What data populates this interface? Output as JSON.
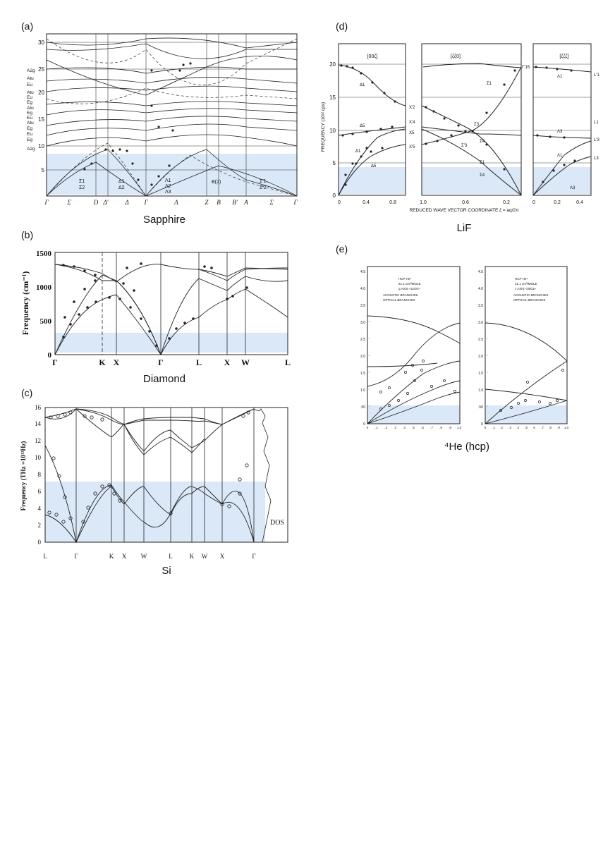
{
  "page": {
    "background": "#ffffff",
    "band_color": "#dbe8f8"
  },
  "chart_data": [
    {
      "panel": "(a)",
      "type": "line",
      "title": "Sapphire",
      "y_ticks": [
        "5",
        "10",
        "15",
        "20",
        "25",
        "30"
      ],
      "ylim": [
        0,
        31
      ],
      "x_labels": [
        "Γ",
        "Σ",
        "D",
        "Δ'",
        "Δ",
        "Γ",
        "Λ",
        "Z",
        "B",
        "B'",
        "A",
        "Σ",
        "Γ"
      ],
      "mode_labels": [
        "A2g",
        "Atu",
        "Eu",
        "Atu",
        "Eu",
        "Eg",
        "Atu",
        "Eg",
        "Eu",
        "Atu",
        "Eg",
        "Eu",
        "Eg",
        "A2g"
      ],
      "legend": [
        "Σ1",
        "Σ2",
        "Δ1",
        "Δ2",
        "Λ1",
        "Λ2",
        "Λ3",
        "B(2)",
        "Σ'1",
        "Σ'2"
      ],
      "highlight_band": [
        0,
        8
      ]
    },
    {
      "panel": "(b)",
      "type": "line",
      "title": "Diamond",
      "ylabel": "Frequency (cm⁻¹)",
      "y_ticks": [
        "0",
        "500",
        "1000",
        "1500"
      ],
      "ylim": [
        0,
        1500
      ],
      "x_labels": [
        "Γ",
        "K",
        "X",
        "Γ",
        "L",
        "X",
        "W",
        "L"
      ],
      "highlight_band": [
        0,
        330
      ],
      "series": [
        {
          "name": "",
          "x": [
            "Γ",
            "K",
            "X",
            "Γ",
            "L",
            "X",
            "W",
            "L"
          ],
          "values": [
            0,
            1000,
            1070,
            0,
            550,
            800,
            950,
            550
          ]
        },
        {
          "name": "",
          "x": [
            "Γ",
            "K",
            "X",
            "Γ",
            "L",
            "X",
            "W",
            "L"
          ],
          "values": [
            1332,
            1190,
            1070,
            1332,
            1250,
            1190,
            1210,
            1250
          ]
        }
      ]
    },
    {
      "panel": "(c)",
      "type": "line",
      "title": "Si",
      "ylabel": "Frequency (THz =10¹²Hz)",
      "y_ticks": [
        "0",
        "2",
        "4",
        "6",
        "8",
        "10",
        "12",
        "14",
        "16"
      ],
      "ylim": [
        0,
        16
      ],
      "x_labels": [
        "L",
        "Γ",
        "K",
        "X",
        "W",
        "L",
        "K",
        "W",
        "X",
        "Γ"
      ],
      "annotation": "DOS",
      "highlight_band": [
        0,
        7.2
      ]
    },
    {
      "panel": "(d)",
      "type": "line",
      "title": "LiF",
      "ylabel": "FREQUENCY (10¹² cps)",
      "xlabel": "REDUCED WAVE VECTOR COORDINATE ζ = aq/2π",
      "y_ticks": [
        "0",
        "5",
        "10",
        "15",
        "20"
      ],
      "ylim": [
        0,
        20
      ],
      "sub_panels": [
        "[00ζ]",
        "[ζζ0]",
        "[ζζζ]"
      ],
      "x_ticks": [
        [
          "0",
          "0.4",
          "0.8"
        ],
        [
          "1.0",
          "0.6",
          "0.2"
        ],
        [
          "0",
          "0.2",
          "0.4"
        ]
      ],
      "branch_labels": [
        "Δ1",
        "Δ5",
        "Δ5",
        "Δ1",
        "X'2",
        "X'4",
        "X5",
        "X'5",
        "Σ1",
        "Σ3",
        "Σ4",
        "Σ'3",
        "Σ1",
        "Σ4",
        "Γ'15",
        "Λ1",
        "Λ3",
        "Λ1",
        "Λ3",
        "L'1",
        "L1",
        "L'3",
        "L3"
      ],
      "highlight_band": [
        0.5,
        4.3
      ]
    },
    {
      "panel": "(e)",
      "type": "line",
      "title": "⁴He (hcp)",
      "y_ticks": [
        "0",
        ".50",
        "1.0",
        "1.5",
        "2.0",
        "2.5",
        "3.0",
        "3.5",
        "4.0",
        "4.5"
      ],
      "ylim": [
        0,
        4.5
      ],
      "x_ticks": [
        "0",
        ".1",
        ".2",
        ".3",
        ".4",
        ".5",
        ".6",
        ".7",
        ".8",
        ".9",
        "1.0"
      ],
      "left_header": [
        "HCP He⁴",
        "21.1 cm³/MOLE",
        "q AXIS <1010>"
      ],
      "left_legend": [
        "ACOUSTIC BRANCHES",
        "OPTICAL BRANCHES"
      ],
      "right_header": [
        "HCP He⁴",
        "21.1 cm³/MOLE",
        "c AXIS <0001>"
      ],
      "right_legend": [
        "ACOUSTIC BRANCHES",
        "OPTICAL BRANCHES"
      ],
      "highlight_band": [
        0,
        0.75
      ]
    }
  ],
  "panel_labels": {
    "a": "(a)",
    "b": "(b)",
    "c": "(c)",
    "d": "(d)",
    "e": "(e)"
  },
  "captions": {
    "a": "Sapphire",
    "b": "Diamond",
    "c": "Si",
    "d": "LiF",
    "e": "⁴He (hcp)"
  }
}
